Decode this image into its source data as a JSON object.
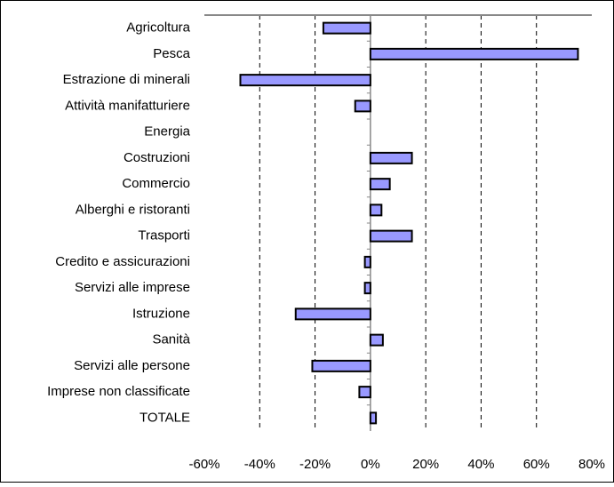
{
  "chart_data": {
    "type": "bar",
    "orientation": "horizontal",
    "categories": [
      "Agricoltura",
      "Pesca",
      "Estrazione di minerali",
      "Attività manifatturiere",
      "Energia",
      "Costruzioni",
      "Commercio",
      "Alberghi e ristoranti",
      "Trasporti",
      "Credito e assicurazioni",
      "Servizi alle imprese",
      "Istruzione",
      "Sanità",
      "Servizi alle persone",
      "Imprese non classificate",
      "TOTALE"
    ],
    "values": [
      -17,
      75,
      -47,
      -5.5,
      0,
      15,
      7,
      4,
      15,
      -2,
      -2,
      -27,
      4.5,
      -21,
      -4,
      2
    ],
    "color": "#9999ff",
    "xlim": [
      -60,
      80
    ],
    "xticks": [
      {
        "value": -60,
        "label": "-60%"
      },
      {
        "value": -40,
        "label": "-40%"
      },
      {
        "value": -20,
        "label": "-20%"
      },
      {
        "value": 0,
        "label": "0%"
      },
      {
        "value": 20,
        "label": "20%"
      },
      {
        "value": 40,
        "label": "40%"
      },
      {
        "value": 60,
        "label": "60%"
      },
      {
        "value": 80,
        "label": "80%"
      }
    ],
    "grid": true
  }
}
